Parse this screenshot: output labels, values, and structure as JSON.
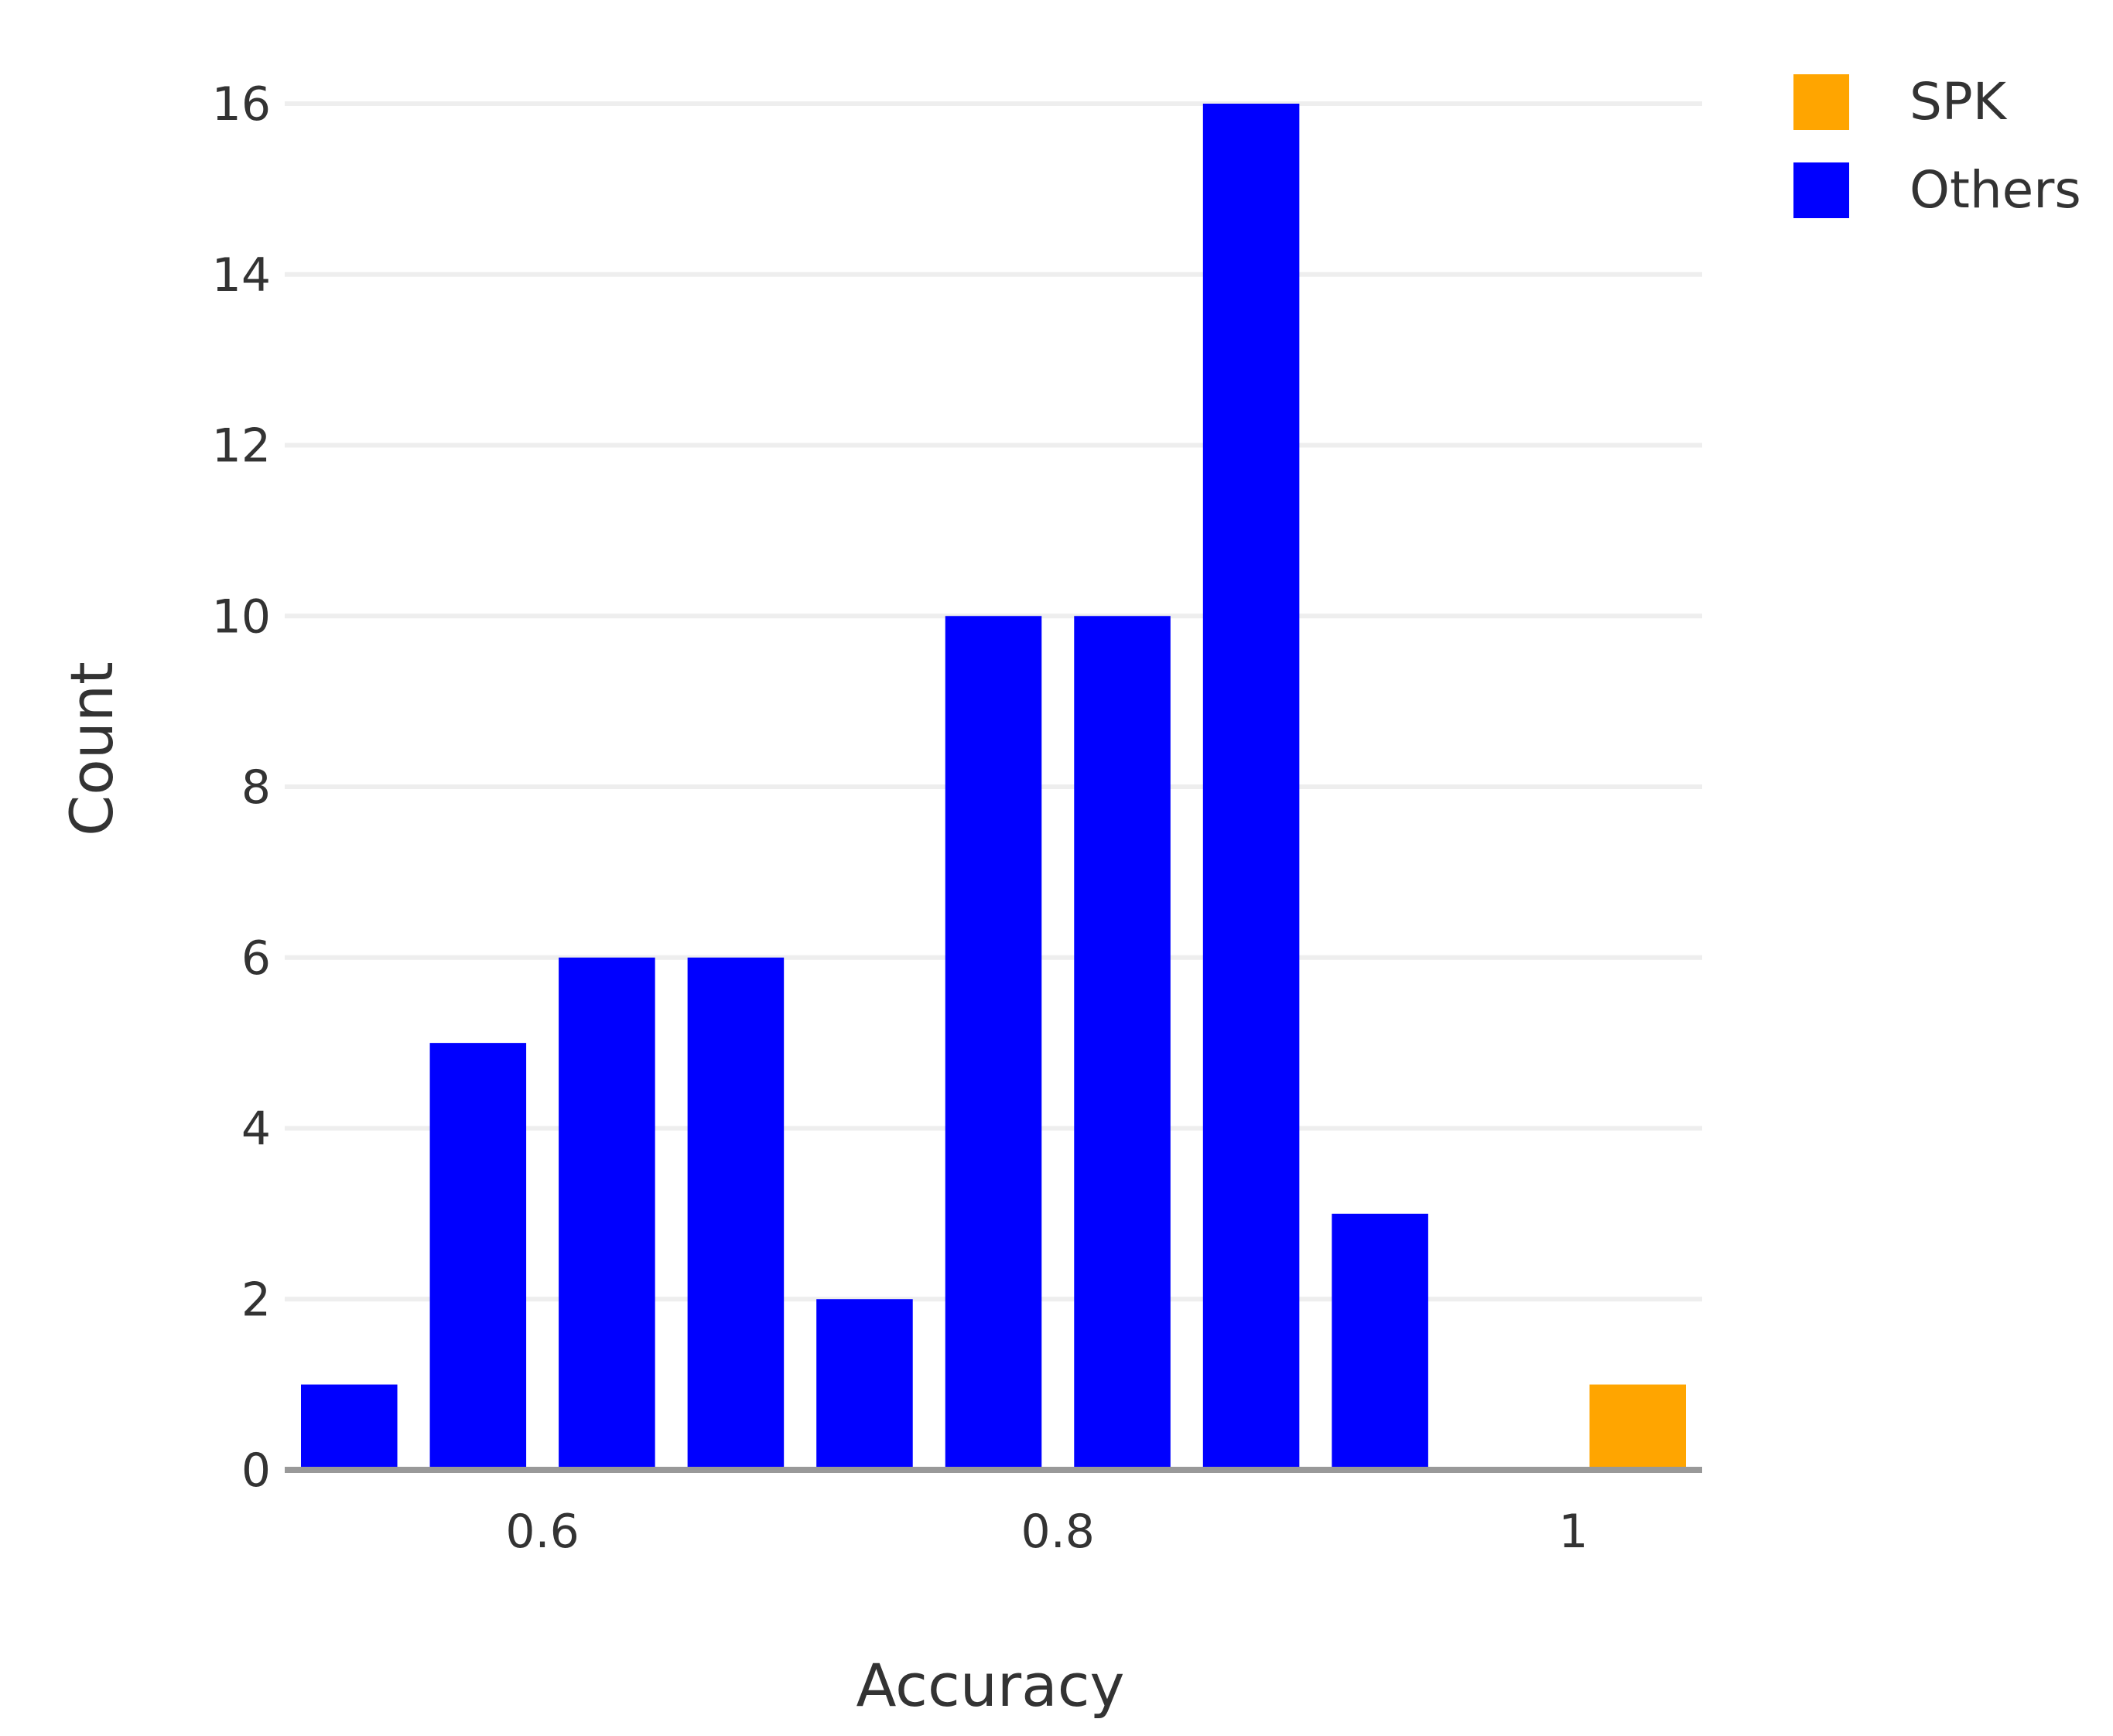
{
  "chart_data": {
    "type": "bar",
    "xlabel": "Accuracy",
    "ylabel": "Count",
    "xlim": [
      0.5,
      1.05
    ],
    "ylim": [
      0,
      16
    ],
    "x_ticks": [
      {
        "value": 0.6,
        "label": "0.6"
      },
      {
        "value": 0.8,
        "label": "0.8"
      },
      {
        "value": 1.0,
        "label": "1"
      }
    ],
    "y_ticks": [
      0,
      2,
      4,
      6,
      8,
      10,
      12,
      14,
      16
    ],
    "bin_width": 0.05,
    "grid": true,
    "legend_position": "top-right",
    "series": [
      {
        "name": "SPK",
        "color": "#ffa500",
        "bins": [
          {
            "x0": 1.0,
            "x1": 1.05,
            "count": 1
          }
        ]
      },
      {
        "name": "Others",
        "color": "#0000ff",
        "bins": [
          {
            "x0": 0.5,
            "x1": 0.55,
            "count": 1
          },
          {
            "x0": 0.55,
            "x1": 0.6,
            "count": 5
          },
          {
            "x0": 0.6,
            "x1": 0.65,
            "count": 6
          },
          {
            "x0": 0.65,
            "x1": 0.7,
            "count": 6
          },
          {
            "x0": 0.7,
            "x1": 0.75,
            "count": 2
          },
          {
            "x0": 0.75,
            "x1": 0.8,
            "count": 10
          },
          {
            "x0": 0.8,
            "x1": 0.85,
            "count": 10
          },
          {
            "x0": 0.85,
            "x1": 0.9,
            "count": 16
          },
          {
            "x0": 0.9,
            "x1": 0.95,
            "count": 3
          }
        ]
      }
    ]
  }
}
